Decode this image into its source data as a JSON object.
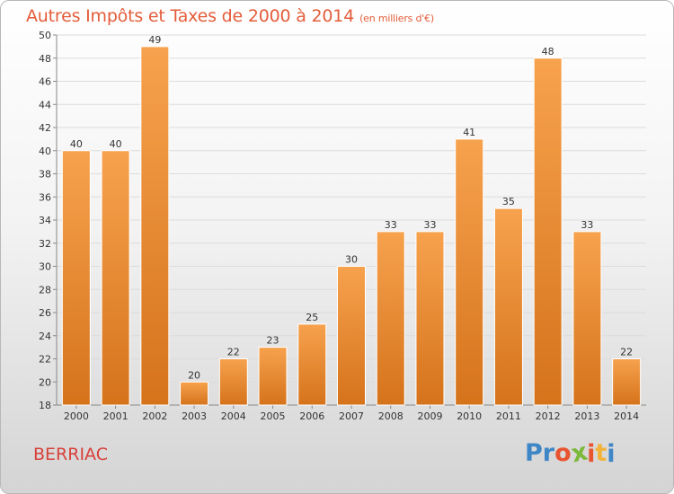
{
  "header": {
    "title": "Autres Impôts et Taxes de 2000 à 2014",
    "subtitle": "(en milliers d'€)"
  },
  "footer": {
    "commune": "BERRIAC",
    "logo": "Proxiti"
  },
  "colors": {
    "title": "#e35d3a",
    "commune": "#d8403a",
    "bar_light": "#f7a24e",
    "bar_dark": "#d5731b",
    "logo_letters": [
      "#3f86c6",
      "#3f86c6",
      "#e8542f",
      "#7cb83a",
      "#e8542f",
      "#f2b33a",
      "#3f86c6"
    ]
  },
  "chart_data": {
    "type": "bar",
    "categories": [
      "2000",
      "2001",
      "2002",
      "2003",
      "2004",
      "2005",
      "2006",
      "2007",
      "2008",
      "2009",
      "2010",
      "2011",
      "2012",
      "2013",
      "2014"
    ],
    "values": [
      40,
      40,
      49,
      20,
      22,
      23,
      25,
      30,
      33,
      33,
      41,
      35,
      48,
      33,
      22
    ],
    "ylim": [
      18,
      50
    ],
    "yticks": [
      18,
      20,
      22,
      24,
      26,
      28,
      30,
      32,
      34,
      36,
      38,
      40,
      42,
      44,
      46,
      48,
      50
    ],
    "grid": true,
    "data_labels": true
  }
}
